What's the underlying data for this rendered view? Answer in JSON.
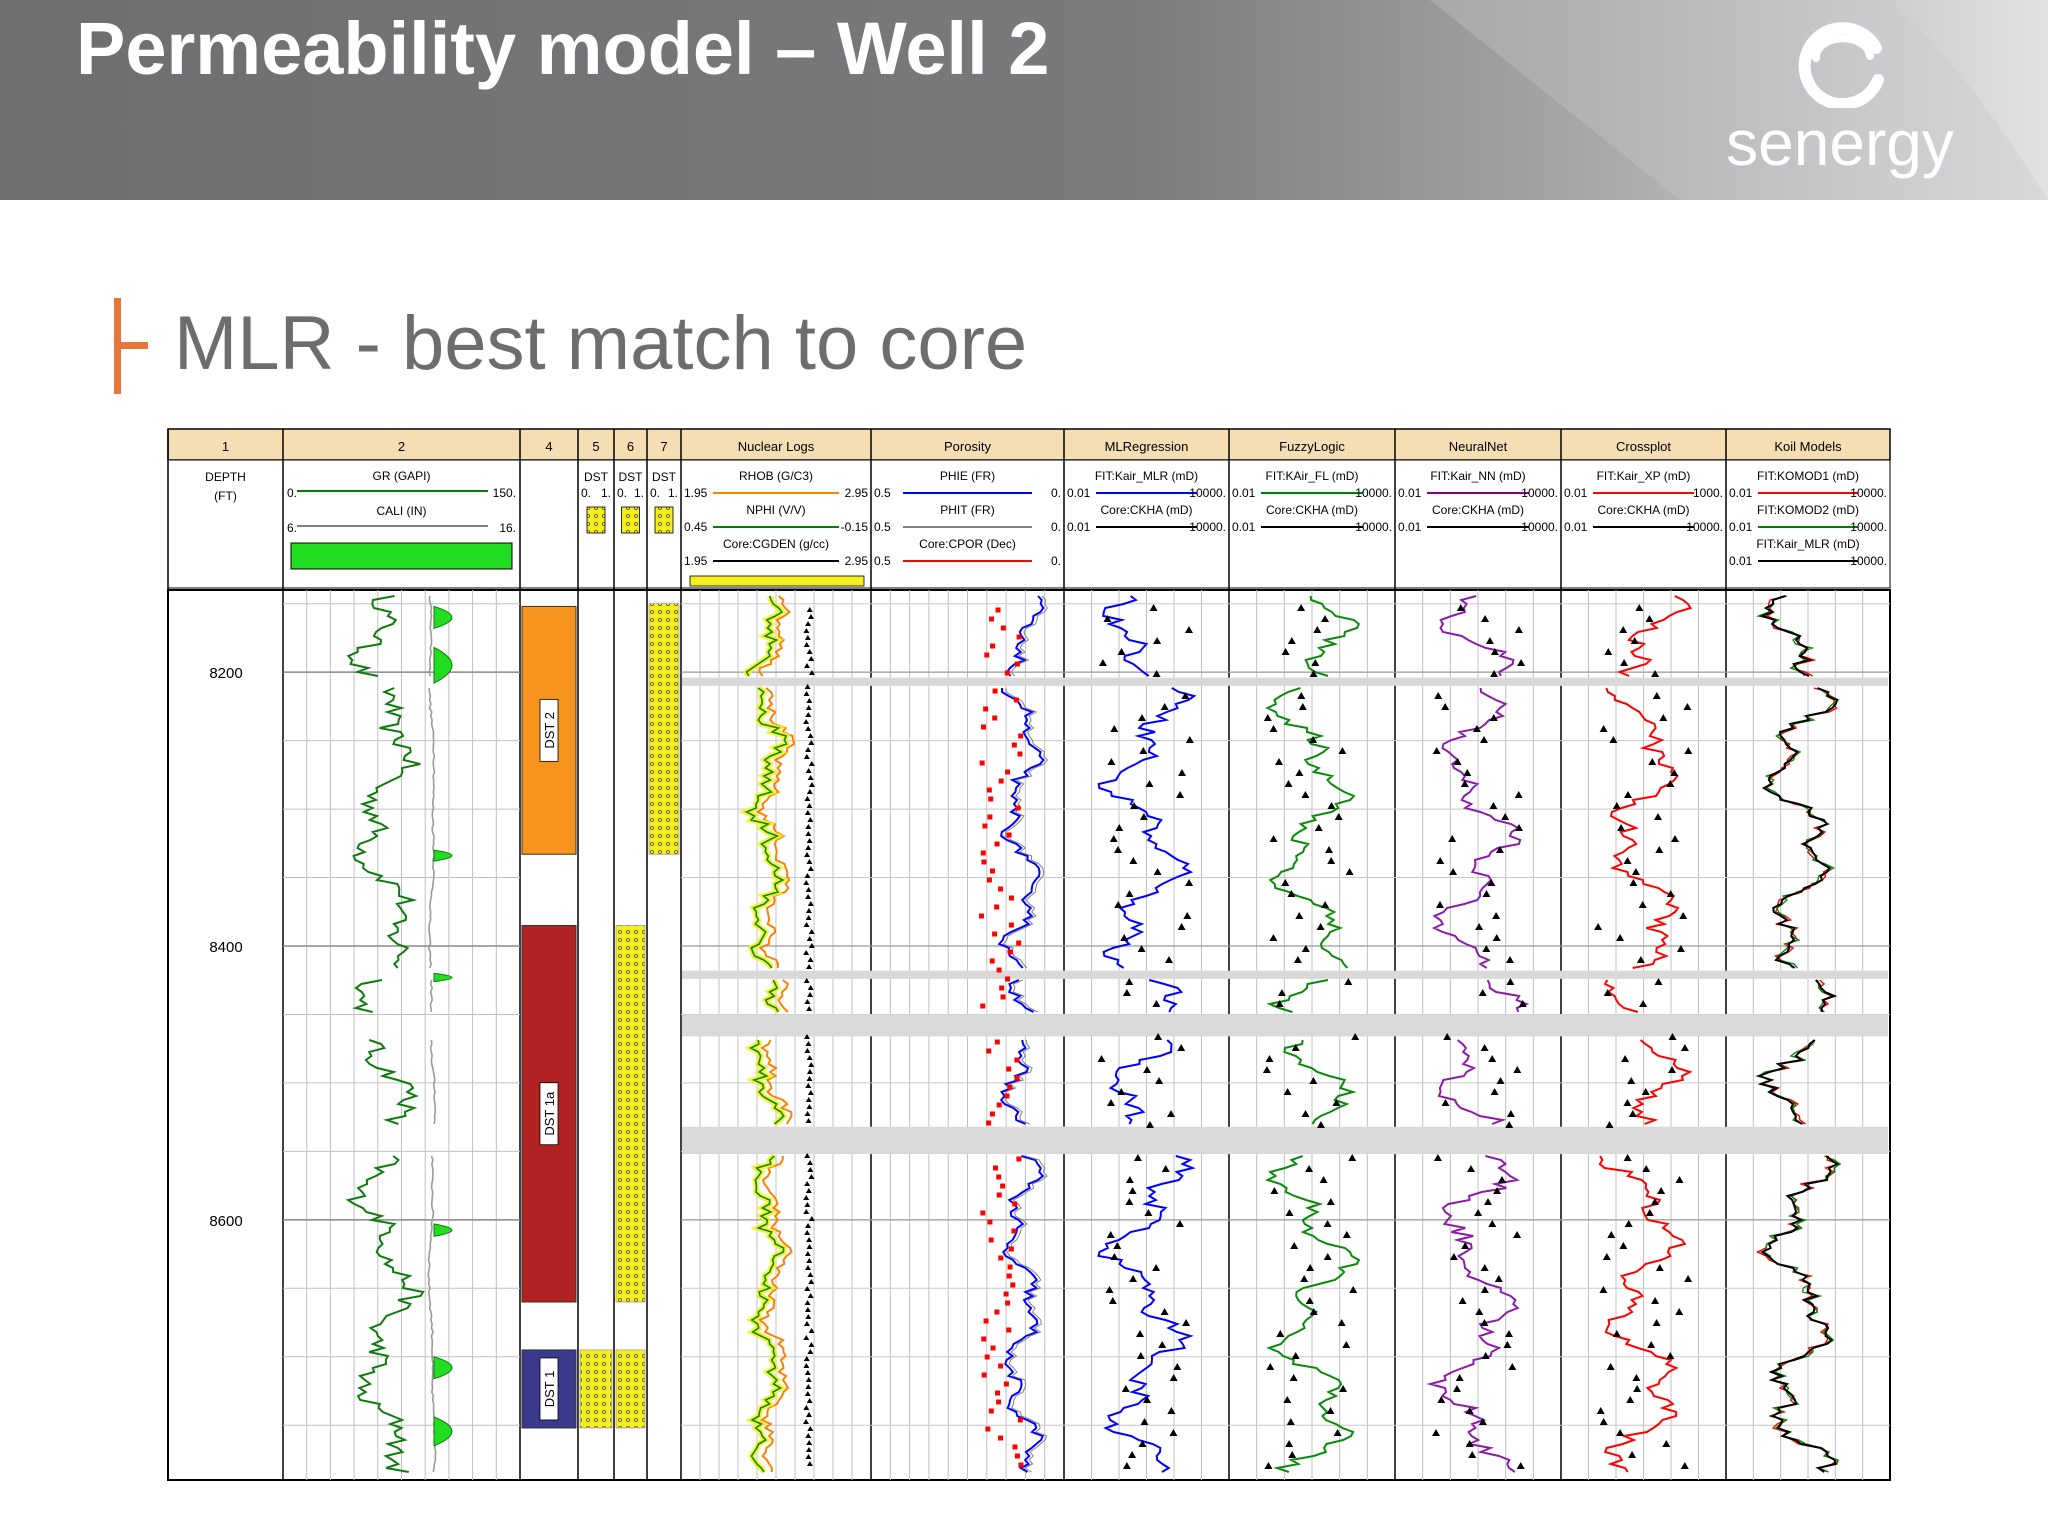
{
  "slide": {
    "title": "Permeability model – Well 2",
    "subtitle": "MLR - best match to core",
    "logo_text": "senergy",
    "colors": {
      "header_gray": "#7a7a7c",
      "accent_orange": "#e8763a",
      "subtitle_gray": "#6d6d6d"
    }
  },
  "chart_data": {
    "type": "line",
    "depth_axis": {
      "label": "DEPTH",
      "unit": "(FT)",
      "ticks": [
        "8200",
        "8400",
        "8600"
      ],
      "range": [
        8140,
        8790
      ]
    },
    "track_numbers": [
      "1",
      "2",
      "4",
      "5",
      "6",
      "7"
    ],
    "tracks": [
      {
        "title": "Nuclear Logs",
        "curves": [
          {
            "name": "RHOB (G/C3)",
            "left": "1.95",
            "right": "2.95",
            "color": "#ff8000"
          },
          {
            "name": "NPHI (V/V)",
            "left": "0.45",
            "right": "-0.15",
            "color": "#008000"
          },
          {
            "name": "Core:CGDEN (g/cc)",
            "left": "1.95",
            "right": "2.95",
            "color": "#000000"
          }
        ]
      },
      {
        "title": "Porosity",
        "curves": [
          {
            "name": "PHIE (FR)",
            "left": "0.5",
            "right": "0.",
            "color": "#0000ff"
          },
          {
            "name": "PHIT (FR)",
            "left": "0.5",
            "right": "0.",
            "color": "#808080"
          },
          {
            "name": "Core:CPOR (Dec)",
            "left": "0.5",
            "right": "0.",
            "color": "#ff0000"
          }
        ]
      },
      {
        "title": "MLRegression",
        "curves": [
          {
            "name": "FIT:Kair_MLR (mD)",
            "left": "0.01",
            "right": "10000.",
            "color": "#0000ff"
          },
          {
            "name": "Core:CKHA (mD)",
            "left": "0.01",
            "right": "10000.",
            "color": "#000000"
          }
        ]
      },
      {
        "title": "FuzzyLogic",
        "curves": [
          {
            "name": "FIT:KAir_FL (mD)",
            "left": "0.01",
            "right": "10000.",
            "color": "#008000"
          },
          {
            "name": "Core:CKHA (mD)",
            "left": "0.01",
            "right": "10000.",
            "color": "#000000"
          }
        ]
      },
      {
        "title": "NeuralNet",
        "curves": [
          {
            "name": "FIT:Kair_NN (mD)",
            "left": "0.01",
            "right": "10000.",
            "color": "#800080"
          },
          {
            "name": "Core:CKHA (mD)",
            "left": "0.01",
            "right": "10000.",
            "color": "#000000"
          }
        ]
      },
      {
        "title": "Crossplot",
        "curves": [
          {
            "name": "FIT:Kair_XP (mD)",
            "left": "0.01",
            "right": "1000.",
            "color": "#ff0000"
          },
          {
            "name": "Core:CKHA (mD)",
            "left": "0.01",
            "right": "10000.",
            "color": "#000000"
          }
        ]
      },
      {
        "title": "Koil Models",
        "curves": [
          {
            "name": "FIT:KOMOD1 (mD)",
            "left": "0.01",
            "right": "10000.",
            "color": "#ff0000"
          },
          {
            "name": "FIT:KOMOD2 (mD)",
            "left": "0.01",
            "right": "10000.",
            "color": "#008000"
          },
          {
            "name": "FIT:Kair_MLR (mD)",
            "left": "0.01",
            "right": "10000.",
            "color": "#000000"
          }
        ]
      }
    ],
    "gamma_track": {
      "curves": [
        {
          "name": "GR (GAPI)",
          "left": "0.",
          "right": "150.",
          "color": "#008000"
        },
        {
          "name": "CALI (IN)",
          "left": "6.",
          "right": "16.",
          "color": "#808080"
        }
      ]
    },
    "dst_columns": [
      {
        "label": "DST",
        "left": "0.",
        "right": "1."
      },
      {
        "label": "DST",
        "left": "0.",
        "right": "1."
      },
      {
        "label": "DST",
        "left": "0.",
        "right": "1."
      }
    ],
    "dst_intervals": [
      {
        "label": "DST 2",
        "top": 8152,
        "base": 8333,
        "color": "#f7941d"
      },
      {
        "label": "DST 1a",
        "top": 8385,
        "base": 8660,
        "color": "#b22222"
      },
      {
        "label": "DST 1",
        "top": 8695,
        "base": 8752,
        "color": "#3a3a8c"
      }
    ],
    "core_intervals": {
      "col5": [
        [
          8695,
          8752
        ]
      ],
      "col6": [
        [
          8385,
          8660
        ],
        [
          8695,
          8752
        ]
      ],
      "col7": [
        [
          8150,
          8333
        ]
      ]
    },
    "data_gaps": [
      [
        8204,
        8210
      ],
      [
        8418,
        8424
      ],
      [
        8450,
        8466
      ],
      [
        8532,
        8552
      ]
    ]
  }
}
